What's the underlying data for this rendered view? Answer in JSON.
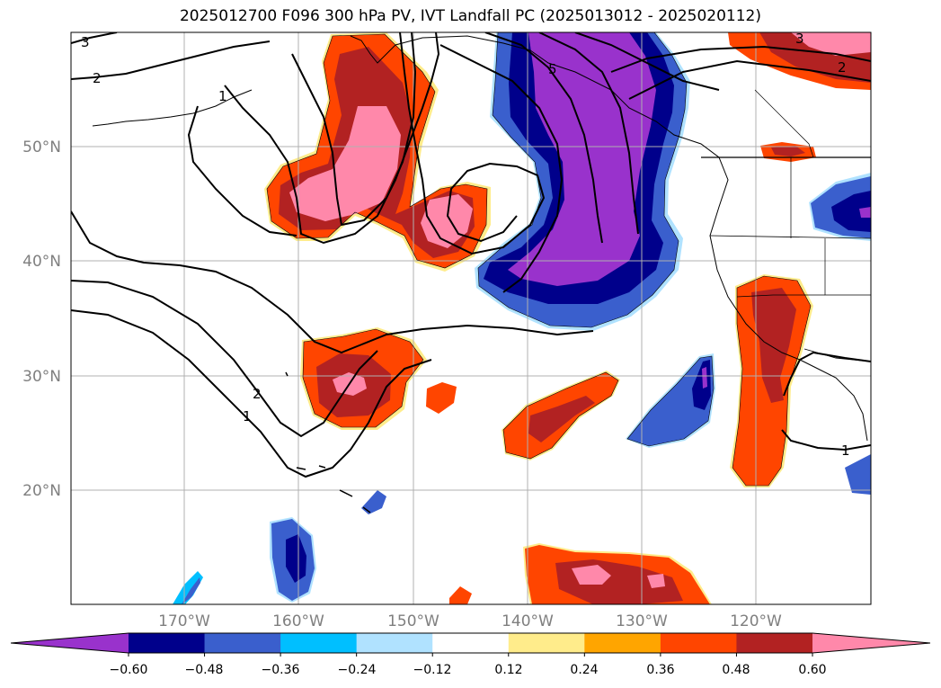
{
  "title": "2025012700 F096 300 hPa PV, IVT Landfall PC (2025013012 - 2025020112)",
  "lat_labels": [
    "50°N",
    "40°N",
    "30°N",
    "20°N"
  ],
  "lon_labels": [
    "170°W",
    "160°W",
    "150°W",
    "140°W",
    "130°W",
    "120°W"
  ],
  "contour_labels": [
    "3",
    "2",
    "1",
    "2",
    "1",
    "5",
    "3",
    "2",
    "1"
  ],
  "colorbar": {
    "ticks": [
      "−0.60",
      "−0.48",
      "−0.36",
      "−0.24",
      "−0.12",
      "0.12",
      "0.24",
      "0.36",
      "0.48",
      "0.60"
    ],
    "colors": [
      "#9932cc",
      "#00008b",
      "#3a5fcd",
      "#00bfff",
      "#b0e2ff",
      "#ffffff",
      "#ffec8b",
      "#ffa500",
      "#ff4500",
      "#b22222",
      "#ff88aa"
    ]
  },
  "palette": {
    "purple": "#9932cc",
    "navy": "#00008b",
    "blue": "#3a5fcd",
    "cyan": "#00bfff",
    "lightblue": "#b0e2ff",
    "yellow": "#ffec8b",
    "orange": "#ffa500",
    "redorange": "#ff4500",
    "firebrick": "#b22222",
    "pink": "#ff88aa"
  }
}
